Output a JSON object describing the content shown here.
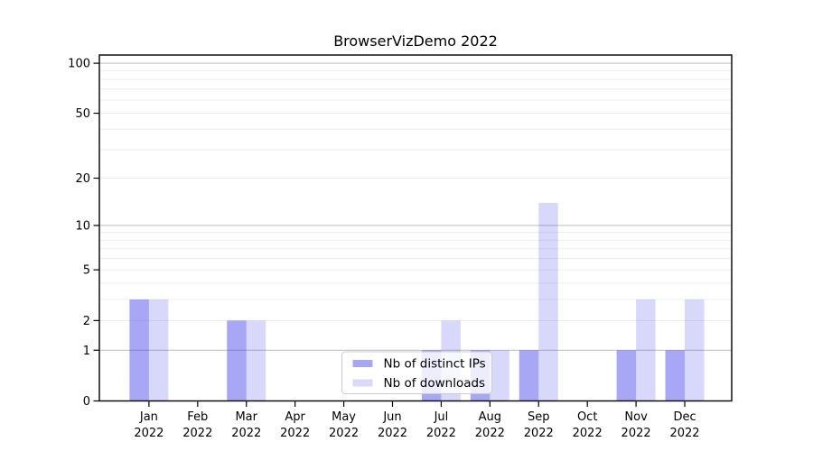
{
  "chart_data": {
    "type": "bar",
    "title": "BrowserVizDemo 2022",
    "categories": [
      "Jan",
      "Feb",
      "Mar",
      "Apr",
      "May",
      "Jun",
      "Jul",
      "Aug",
      "Sep",
      "Oct",
      "Nov",
      "Dec"
    ],
    "x_tick_year": "2022",
    "series": [
      {
        "name": "Nb of distinct IPs",
        "color": "rgba(60,60,235,0.45)",
        "values": [
          3,
          0,
          2,
          0,
          0,
          0,
          1,
          1,
          1,
          0,
          1,
          1
        ]
      },
      {
        "name": "Nb of downloads",
        "color": "rgba(60,60,235,0.20)",
        "values": [
          3,
          0,
          2,
          0,
          0,
          0,
          2,
          1,
          14,
          0,
          3,
          3
        ]
      }
    ],
    "xlabel": "",
    "ylabel": "",
    "y_scale": "log1p",
    "ylim": [
      0,
      112
    ],
    "y_ticks": [
      0,
      1,
      2,
      5,
      10,
      20,
      50,
      100
    ],
    "grid": {
      "on": true,
      "major_values": [
        1,
        10,
        100
      ],
      "minor_values": [
        2,
        3,
        4,
        5,
        6,
        7,
        8,
        9,
        20,
        30,
        40,
        50,
        60,
        70,
        80,
        90
      ],
      "major_color": "#c3c3c3",
      "minor_color": "#ececec"
    },
    "legend": {
      "position": "lower center",
      "background": "rgba(255,255,255,0.8)",
      "border_color": "#cccccc",
      "entries": [
        "Nb of distinct IPs",
        "Nb of downloads"
      ]
    },
    "axis_color": "#000000"
  }
}
